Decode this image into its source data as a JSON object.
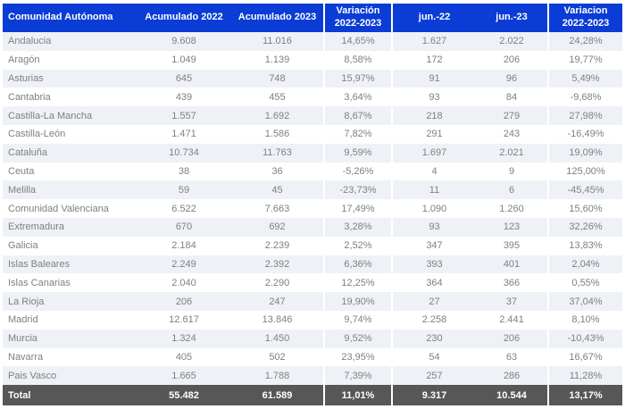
{
  "colors": {
    "header_bg": "#0b3cd6",
    "header_text": "#ffffff",
    "stripe_bg": "#eef2f7",
    "row_bg": "#ffffff",
    "body_text": "#7f7f7f",
    "total_bg": "#575757",
    "total_text": "#ffffff",
    "page_bg": "#ffffff"
  },
  "chart_data": {
    "type": "table",
    "title": "",
    "columns": [
      "Comunidad Autónoma",
      "Acumulado 2022",
      "Acumulado 2023",
      "Variación 2022-2023",
      "jun.-22",
      "jun.-23",
      "Variacion 2022-2023"
    ],
    "rows": [
      [
        "Andalucia",
        "9.608",
        "11.016",
        "14,65%",
        "1.627",
        "2.022",
        "24,28%"
      ],
      [
        "Aragón",
        "1.049",
        "1.139",
        "8,58%",
        "172",
        "206",
        "19,77%"
      ],
      [
        "Asturias",
        "645",
        "748",
        "15,97%",
        "91",
        "96",
        "5,49%"
      ],
      [
        "Cantabria",
        "439",
        "455",
        "3,64%",
        "93",
        "84",
        "-9,68%"
      ],
      [
        "Castilla-La Mancha",
        "1.557",
        "1.692",
        "8,67%",
        "218",
        "279",
        "27,98%"
      ],
      [
        "Castilla-León",
        "1.471",
        "1.586",
        "7,82%",
        "291",
        "243",
        "-16,49%"
      ],
      [
        "Cataluña",
        "10.734",
        "11.763",
        "9,59%",
        "1.697",
        "2.021",
        "19,09%"
      ],
      [
        "Ceuta",
        "38",
        "36",
        "-5,26%",
        "4",
        "9",
        "125,00%"
      ],
      [
        "Melilla",
        "59",
        "45",
        "-23,73%",
        "11",
        "6",
        "-45,45%"
      ],
      [
        "Comunidad Valenciana",
        "6.522",
        "7.663",
        "17,49%",
        "1.090",
        "1.260",
        "15,60%"
      ],
      [
        "Extremadura",
        "670",
        "692",
        "3,28%",
        "93",
        "123",
        "32,26%"
      ],
      [
        "Galicia",
        "2.184",
        "2.239",
        "2,52%",
        "347",
        "395",
        "13,83%"
      ],
      [
        "Islas Baleares",
        "2.249",
        "2.392",
        "6,36%",
        "393",
        "401",
        "2,04%"
      ],
      [
        "Islas Canarias",
        "2.040",
        "2.290",
        "12,25%",
        "364",
        "366",
        "0,55%"
      ],
      [
        "La Rioja",
        "206",
        "247",
        "19,90%",
        "27",
        "37",
        "37,04%"
      ],
      [
        "Madrid",
        "12.617",
        "13.846",
        "9,74%",
        "2.258",
        "2.441",
        "8,10%"
      ],
      [
        "Murcia",
        "1.324",
        "1.450",
        "9,52%",
        "230",
        "206",
        "-10,43%"
      ],
      [
        "Navarra",
        "405",
        "502",
        "23,95%",
        "54",
        "63",
        "16,67%"
      ],
      [
        "Pais Vasco",
        "1.665",
        "1.788",
        "7,39%",
        "257",
        "286",
        "11,28%"
      ]
    ],
    "total_row": [
      "Total",
      "55.482",
      "61.589",
      "11,01%",
      "9.317",
      "10.544",
      "13,17%"
    ]
  }
}
